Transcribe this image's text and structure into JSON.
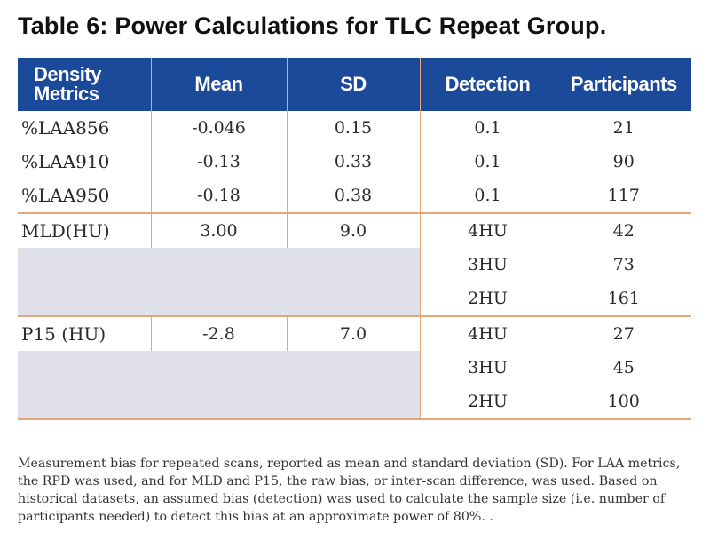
{
  "title": "Table 6: Power Calculations for TLC Repeat Group.",
  "headers": {
    "metric_line1": "Density",
    "metric_line2": "Metrics",
    "mean": "Mean",
    "sd": "SD",
    "detection": "Detection",
    "participants": "Participants"
  },
  "rows": [
    {
      "metric": "%LAA856",
      "mean": "-0.046",
      "sd": "0.15",
      "detection": "0.1",
      "participants": "21"
    },
    {
      "metric": "%LAA910",
      "mean": "-0.13",
      "sd": "0.33",
      "detection": "0.1",
      "participants": "90"
    },
    {
      "metric": "%LAA950",
      "mean": "-0.18",
      "sd": "0.38",
      "detection": "0.1",
      "participants": "117"
    },
    {
      "metric": "MLD(HU)",
      "mean": "3.00",
      "sd": "9.0",
      "detection": "4HU",
      "participants": "42"
    },
    {
      "metric": "",
      "mean": "",
      "sd": "",
      "detection": "3HU",
      "participants": "73"
    },
    {
      "metric": "",
      "mean": "",
      "sd": "",
      "detection": "2HU",
      "participants": "161"
    },
    {
      "metric": "P15 (HU)",
      "mean": "-2.8",
      "sd": "7.0",
      "detection": "4HU",
      "participants": "27"
    },
    {
      "metric": "",
      "mean": "",
      "sd": "",
      "detection": "3HU",
      "participants": "45"
    },
    {
      "metric": "",
      "mean": "",
      "sd": "",
      "detection": "2HU",
      "participants": "100"
    }
  ],
  "footnote": "Measurement bias for repeated scans, reported as mean and standard deviation (SD).  For LAA metrics, the RPD was used, and for MLD and P15, the raw bias, or inter-scan difference, was used.  Based on historical datasets, an assumed bias (detection) was used to calculate the sample size (i.e. number of participants needed) to detect this bias at an approximate power of 80%. ."
}
